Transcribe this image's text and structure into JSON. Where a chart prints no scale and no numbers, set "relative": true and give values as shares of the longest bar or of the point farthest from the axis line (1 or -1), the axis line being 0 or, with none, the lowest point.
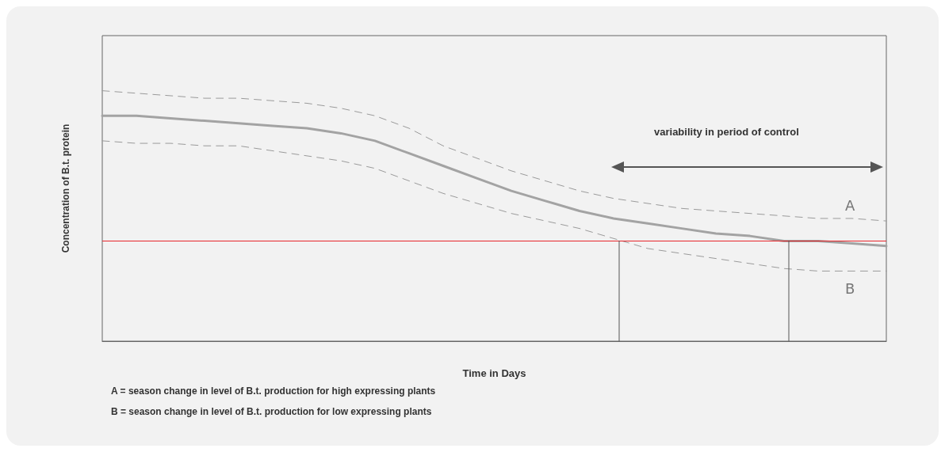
{
  "chart_data": {
    "type": "line",
    "relative": true,
    "marker": "none",
    "xlabel": "Time in Days",
    "ylabel": "Concentration of B.t. protein",
    "categories": [
      null,
      null,
      null,
      null,
      null,
      null,
      null,
      null,
      null,
      null,
      null,
      null,
      null,
      null,
      null,
      null,
      null,
      null,
      null,
      null,
      null,
      null,
      null,
      null
    ],
    "series": [
      {
        "color": "#a3a3a3",
        "line_style": "solid",
        "values": [
          0.9,
          0.9,
          0.89,
          0.88,
          0.87,
          0.86,
          0.85,
          0.83,
          0.8,
          0.75,
          0.7,
          0.65,
          0.6,
          0.56,
          0.52,
          0.49,
          0.47,
          0.45,
          0.43,
          0.42,
          0.4,
          0.4,
          0.39,
          0.38
        ]
      },
      {
        "name": "A",
        "color": "#9a9a9a",
        "line_style": "dashed",
        "values": [
          1.0,
          0.99,
          0.98,
          0.97,
          0.97,
          0.96,
          0.95,
          0.93,
          0.9,
          0.85,
          0.78,
          0.73,
          0.68,
          0.64,
          0.6,
          0.57,
          0.55,
          0.53,
          0.52,
          0.51,
          0.5,
          0.49,
          0.49,
          0.48
        ]
      },
      {
        "name": "B",
        "color": "#9a9a9a",
        "line_style": "dashed",
        "values": [
          0.8,
          0.79,
          0.79,
          0.78,
          0.78,
          0.76,
          0.74,
          0.72,
          0.69,
          0.64,
          0.59,
          0.55,
          0.51,
          0.48,
          0.45,
          0.41,
          0.37,
          0.35,
          0.33,
          0.31,
          0.29,
          0.28,
          0.28,
          0.28
        ]
      }
    ],
    "ref_lines": [
      {
        "axis": "y",
        "value": 0.4,
        "color": "#e8262b"
      }
    ],
    "annotations": [
      "variability in period of control",
      "A = season change in level of B.t. production for high expressing plants",
      "B = season change in level of B.t. production for low expressing plants"
    ]
  }
}
